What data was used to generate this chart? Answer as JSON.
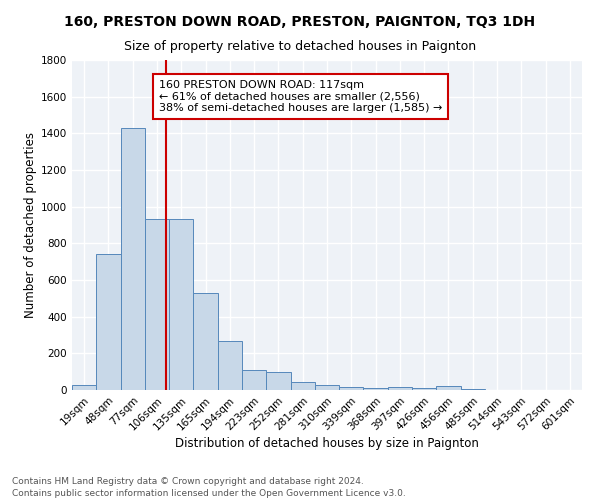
{
  "title": "160, PRESTON DOWN ROAD, PRESTON, PAIGNTON, TQ3 1DH",
  "subtitle": "Size of property relative to detached houses in Paignton",
  "xlabel": "Distribution of detached houses by size in Paignton",
  "ylabel": "Number of detached properties",
  "footnote": "Contains HM Land Registry data © Crown copyright and database right 2024.\nContains public sector information licensed under the Open Government Licence v3.0.",
  "bin_labels": [
    "19sqm",
    "48sqm",
    "77sqm",
    "106sqm",
    "135sqm",
    "165sqm",
    "194sqm",
    "223sqm",
    "252sqm",
    "281sqm",
    "310sqm",
    "339sqm",
    "368sqm",
    "397sqm",
    "426sqm",
    "456sqm",
    "485sqm",
    "514sqm",
    "543sqm",
    "572sqm",
    "601sqm"
  ],
  "bar_heights": [
    25,
    740,
    1430,
    935,
    935,
    530,
    270,
    110,
    100,
    45,
    25,
    15,
    10,
    15,
    10,
    20,
    5,
    0,
    0,
    0,
    0
  ],
  "bar_color": "#c8d8e8",
  "bar_edgecolor": "#5588bb",
  "line_color": "#cc0000",
  "annotation_text": "160 PRESTON DOWN ROAD: 117sqm\n← 61% of detached houses are smaller (2,556)\n38% of semi-detached houses are larger (1,585) →",
  "annotation_box_color": "#ffffff",
  "annotation_box_edgecolor": "#cc0000",
  "ylim": [
    0,
    1800
  ],
  "yticks": [
    0,
    200,
    400,
    600,
    800,
    1000,
    1200,
    1400,
    1600,
    1800
  ],
  "background_color": "#eef2f7",
  "grid_color": "#ffffff",
  "title_fontsize": 10,
  "subtitle_fontsize": 9,
  "axis_label_fontsize": 8.5,
  "tick_fontsize": 7.5,
  "annotation_fontsize": 8,
  "footnote_fontsize": 6.5
}
